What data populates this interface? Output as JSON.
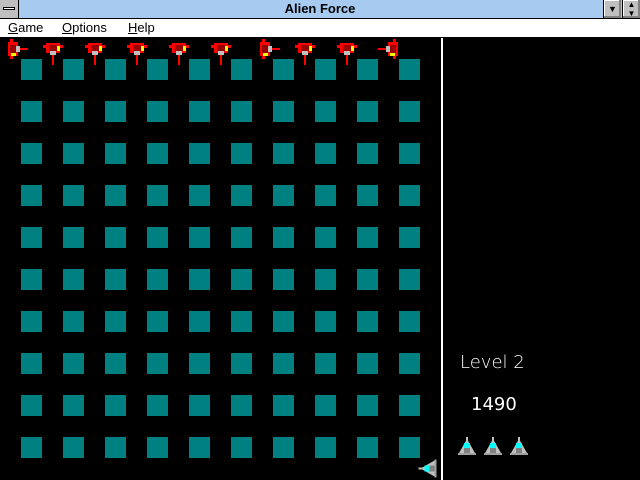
{
  "window": {
    "title": "Alien Force"
  },
  "menu": [
    {
      "label_first": "G",
      "label_rest": "ame"
    },
    {
      "label_first": "O",
      "label_rest": "ptions"
    },
    {
      "label_first": "H",
      "label_rest": "elp"
    }
  ],
  "status": {
    "level": "Level 2",
    "score": "1490",
    "lives": 3
  },
  "colors": {
    "block": "#008080",
    "alien": "#ff0000",
    "titlebar": "#a6caf0",
    "player": "#c0c0c0"
  },
  "icons": {
    "enemy": "alien-ship-icon",
    "player": "player-ship-icon"
  },
  "grid": {
    "rows": 10,
    "cols": 10
  }
}
